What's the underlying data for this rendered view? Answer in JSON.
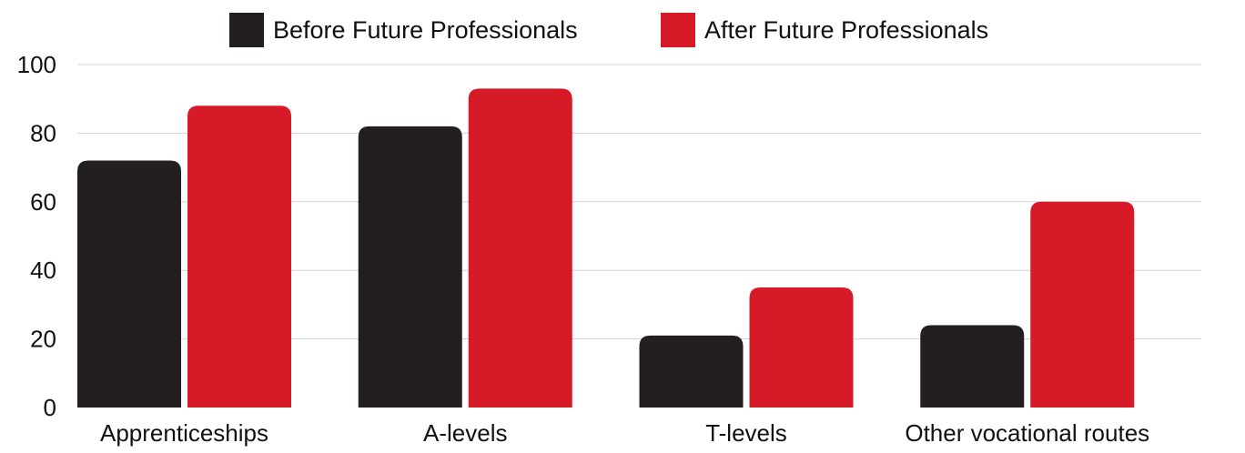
{
  "chart_data": {
    "type": "bar",
    "title": "",
    "xlabel": "",
    "ylabel": "",
    "categories": [
      "Apprenticeships",
      "A-levels",
      "T-levels",
      "Other vocational routes"
    ],
    "series": [
      {
        "name": "Before Future Professionals",
        "color": "#231f20",
        "values": [
          72,
          82,
          21,
          24
        ]
      },
      {
        "name": "After Future Professionals",
        "color": "#d71a28",
        "values": [
          88,
          93,
          35,
          60
        ]
      }
    ],
    "ylim": [
      0,
      100
    ],
    "yticks": [
      "0",
      "20",
      "40",
      "60",
      "80",
      "100"
    ],
    "grid": true,
    "legend_position": "top"
  }
}
